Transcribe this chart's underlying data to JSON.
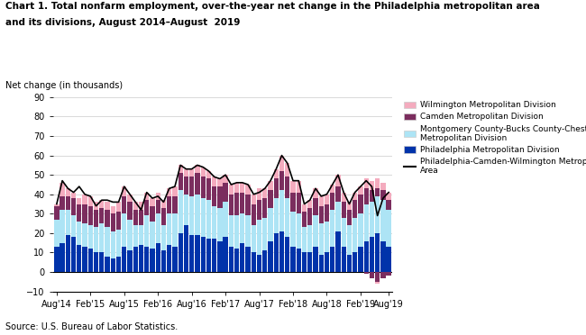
{
  "title_line1": "Chart 1. Total nonfarm employment, over-the-year net change in the Philadelphia metropolitan area",
  "title_line2": "and its divisions, August 2014–August  2019",
  "ylabel": "Net change (in thousands)",
  "source": "Source: U.S. Bureau of Labor Statistics.",
  "ylim": [
    -10,
    90
  ],
  "yticks": [
    -10.0,
    0.0,
    10.0,
    20.0,
    30.0,
    40.0,
    50.0,
    60.0,
    70.0,
    80.0,
    90.0
  ],
  "colors": {
    "wilmington": "#F4ABBE",
    "camden": "#7B2D5E",
    "montgomery": "#ADE4F5",
    "philadelphia_div": "#0033AA",
    "msa_line": "#000000"
  },
  "legend_labels": [
    "Wilmington Metropolitan Division",
    "Camden Metropolitan Division",
    "Montgomery County-Bucks County-Chester County\nMetropolitan Division",
    "Philadelphia Metropolitan Division",
    "Philadelphia-Camden-Wilmington Metropolitan Statistical\nArea"
  ],
  "xtick_labels": [
    "Aug'14",
    "Feb'15",
    "Aug'15",
    "Feb'16",
    "Aug'16",
    "Feb'17",
    "Aug'17",
    "Feb'18",
    "Aug'18",
    "Feb'19",
    "Aug'19"
  ],
  "philadelphia_div": [
    13,
    15,
    19,
    18,
    14,
    13,
    12,
    10,
    10,
    8,
    7,
    8,
    13,
    11,
    13,
    14,
    13,
    12,
    15,
    11,
    14,
    13,
    20,
    24,
    19,
    19,
    18,
    17,
    17,
    16,
    18,
    13,
    12,
    15,
    13,
    10,
    9,
    11,
    16,
    20,
    21,
    18,
    13,
    12,
    10,
    10,
    13,
    9,
    10,
    13,
    21,
    13,
    9,
    10,
    13,
    16,
    18,
    20,
    16,
    13
  ],
  "montgomery_div": [
    14,
    17,
    13,
    11,
    12,
    12,
    12,
    13,
    15,
    15,
    14,
    14,
    17,
    16,
    11,
    10,
    16,
    14,
    15,
    13,
    16,
    17,
    22,
    16,
    20,
    21,
    20,
    20,
    17,
    17,
    18,
    16,
    17,
    15,
    16,
    14,
    18,
    17,
    17,
    18,
    21,
    20,
    18,
    18,
    13,
    14,
    16,
    16,
    16,
    19,
    15,
    15,
    15,
    18,
    17,
    19,
    18,
    19,
    21,
    19
  ],
  "camden_div": [
    7,
    7,
    7,
    9,
    9,
    10,
    10,
    9,
    8,
    9,
    9,
    9,
    9,
    9,
    8,
    8,
    8,
    8,
    7,
    9,
    9,
    9,
    9,
    9,
    10,
    11,
    11,
    11,
    10,
    11,
    10,
    11,
    12,
    11,
    11,
    11,
    10,
    10,
    9,
    10,
    10,
    11,
    10,
    11,
    8,
    9,
    9,
    9,
    9,
    9,
    8,
    8,
    8,
    9,
    10,
    8,
    6,
    4,
    5,
    5
  ],
  "wilmington_div": [
    1,
    7,
    4,
    3,
    3,
    5,
    5,
    4,
    4,
    4,
    4,
    5,
    5,
    4,
    4,
    4,
    4,
    4,
    4,
    4,
    4,
    5,
    4,
    4,
    4,
    4,
    5,
    4,
    5,
    4,
    4,
    5,
    5,
    5,
    5,
    5,
    6,
    5,
    5,
    5,
    8,
    7,
    6,
    6,
    4,
    4,
    5,
    5,
    5,
    4,
    6,
    5,
    4,
    4,
    4,
    5,
    5,
    5,
    4,
    4
  ],
  "camden_div_neg": [
    0,
    0,
    0,
    0,
    0,
    0,
    0,
    0,
    0,
    0,
    0,
    0,
    0,
    0,
    0,
    0,
    0,
    0,
    0,
    0,
    0,
    0,
    0,
    0,
    0,
    0,
    0,
    0,
    0,
    0,
    0,
    0,
    0,
    0,
    0,
    0,
    0,
    0,
    0,
    0,
    0,
    0,
    0,
    0,
    0,
    0,
    0,
    0,
    0,
    0,
    0,
    0,
    0,
    0,
    0,
    -1,
    -3,
    -5,
    -3,
    -2
  ],
  "wilmington_div_neg": [
    0,
    0,
    0,
    0,
    0,
    0,
    0,
    0,
    0,
    0,
    0,
    0,
    0,
    0,
    0,
    0,
    0,
    0,
    0,
    0,
    0,
    0,
    0,
    0,
    0,
    0,
    0,
    0,
    0,
    0,
    0,
    0,
    0,
    0,
    0,
    0,
    0,
    0,
    0,
    0,
    0,
    0,
    0,
    0,
    0,
    0,
    0,
    0,
    0,
    0,
    0,
    0,
    0,
    0,
    0,
    0,
    0,
    -1,
    0,
    0
  ],
  "msa_line": [
    35,
    47,
    43,
    41,
    44,
    40,
    39,
    34,
    37,
    37,
    36,
    36,
    44,
    40,
    36,
    32,
    41,
    38,
    39,
    36,
    43,
    44,
    55,
    53,
    53,
    55,
    54,
    52,
    49,
    48,
    50,
    45,
    46,
    46,
    45,
    40,
    41,
    43,
    47,
    53,
    60,
    56,
    47,
    47,
    35,
    37,
    43,
    39,
    40,
    45,
    50,
    41,
    35,
    41,
    44,
    47,
    44,
    29,
    38,
    41
  ]
}
